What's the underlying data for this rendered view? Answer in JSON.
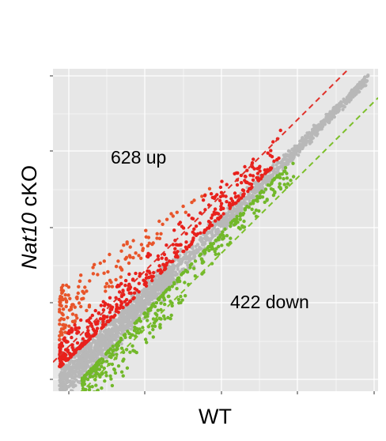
{
  "chart_data": {
    "type": "scatter",
    "xlabel": "WT",
    "ylabel": {
      "italic": "Nat10",
      "rest": " cKO"
    },
    "grid": true,
    "annotations": [
      {
        "text": "628 up",
        "x": 2.7,
        "y": 8.2
      },
      {
        "text": "422 down",
        "x": 5.8,
        "y": 3.0
      }
    ],
    "xlim": [
      0,
      10
    ],
    "ylim": [
      0,
      10
    ],
    "reference_lines": [
      {
        "name": "up threshold",
        "style": "dashed",
        "color": "#e0312a",
        "intercept": 0.9,
        "slope": 1
      },
      {
        "name": "down threshold",
        "style": "dashed",
        "color": "#7cbf2a",
        "intercept": -0.9,
        "slope": 1
      }
    ],
    "series": [
      {
        "group": "unchanged",
        "color": "#b8b8b8"
      },
      {
        "group": "up",
        "color": "#e8211c"
      },
      {
        "group": "down",
        "color": "#72b82a"
      }
    ],
    "counts": {
      "up": 628,
      "down": 422
    }
  },
  "colors": {
    "panel": "#e7e7e7",
    "grid": "#ffffff",
    "up": "#e8211c",
    "up_outlier": "#e8552a",
    "down": "#72b82a",
    "neutral": "#b8b8b8"
  }
}
